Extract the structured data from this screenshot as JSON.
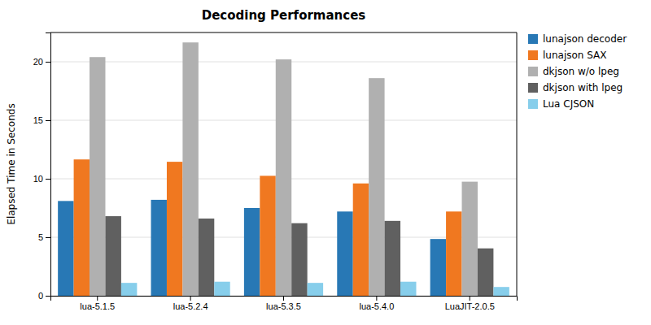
{
  "chart_data": {
    "type": "bar",
    "title": "Decoding Performances",
    "ylabel": "Elapsed Time in Seconds",
    "categories": [
      "lua-5.1.5",
      "lua-5.2.4",
      "lua-5.3.5",
      "lua-5.4.0",
      "LuaJIT-2.0.5"
    ],
    "series": [
      {
        "name": "lunajson decoder",
        "color": "#2878b5",
        "values": [
          8.1,
          8.2,
          7.5,
          7.2,
          4.85
        ]
      },
      {
        "name": "lunajson SAX",
        "color": "#f07820",
        "values": [
          11.65,
          11.45,
          10.25,
          9.6,
          7.2
        ]
      },
      {
        "name": "dkjson w/o lpeg",
        "color": "#b0b0b0",
        "values": [
          20.4,
          21.65,
          20.2,
          18.6,
          9.75
        ]
      },
      {
        "name": "dkjson with lpeg",
        "color": "#606060",
        "values": [
          6.8,
          6.6,
          6.2,
          6.4,
          4.05
        ]
      },
      {
        "name": "Lua CJSON",
        "color": "#87ceeb",
        "values": [
          1.1,
          1.2,
          1.1,
          1.2,
          0.75
        ]
      }
    ],
    "ylim": [
      0,
      22.5
    ],
    "yticks": [
      0,
      5,
      10,
      15,
      20
    ],
    "grid": true,
    "legend": "upper right"
  }
}
